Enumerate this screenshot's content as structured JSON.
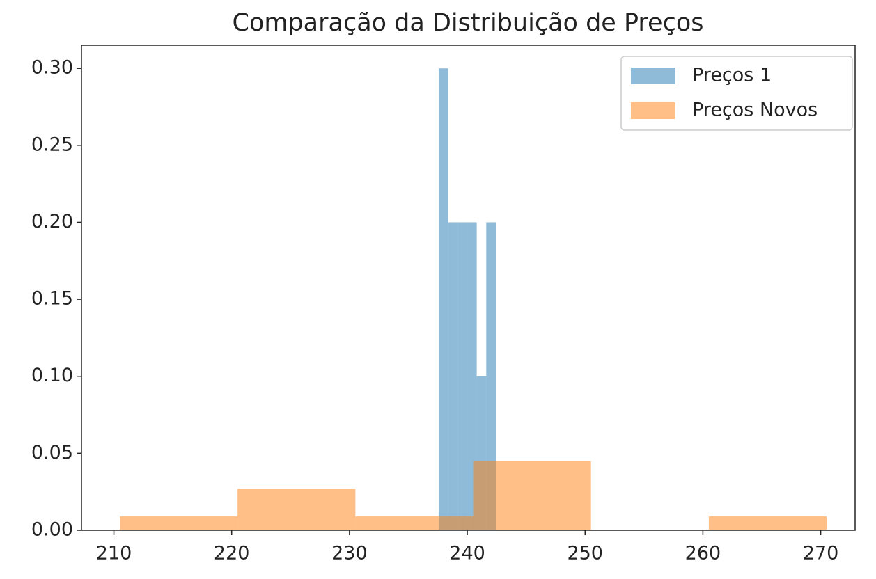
{
  "chart_data": {
    "type": "histogram",
    "title": "Comparação da Distribuição de Preços",
    "series": [
      {
        "name": "Preços 1",
        "color": "#1f77b4",
        "bins": [
          237.57,
          238.38,
          239.19,
          240.0,
          240.8,
          241.61,
          242.42
        ],
        "values": [
          0.3,
          0.2,
          0.2,
          0.2,
          0.1,
          0.2
        ]
      },
      {
        "name": "Preços Novos",
        "color": "#ff7f0e",
        "bins": [
          210.5,
          220.5,
          230.5,
          240.5,
          250.5,
          260.5,
          270.5
        ],
        "values": [
          0.009,
          0.027,
          0.009,
          0.045,
          0,
          0.009
        ]
      }
    ],
    "xlim": [
      207.25,
      272.92
    ],
    "xticks": [
      210,
      220,
      230,
      240,
      250,
      260,
      270
    ],
    "ylim": [
      0,
      0.315
    ],
    "yticks": [
      {
        "value": 0,
        "label": "0.00"
      },
      {
        "value": 0.05,
        "label": "0.05"
      },
      {
        "value": 0.1,
        "label": "0.10"
      },
      {
        "value": 0.15,
        "label": "0.15"
      },
      {
        "value": 0.2,
        "label": "0.20"
      },
      {
        "value": 0.25,
        "label": "0.25"
      },
      {
        "value": 0.3,
        "label": "0.30"
      }
    ],
    "legend": "upper right"
  }
}
